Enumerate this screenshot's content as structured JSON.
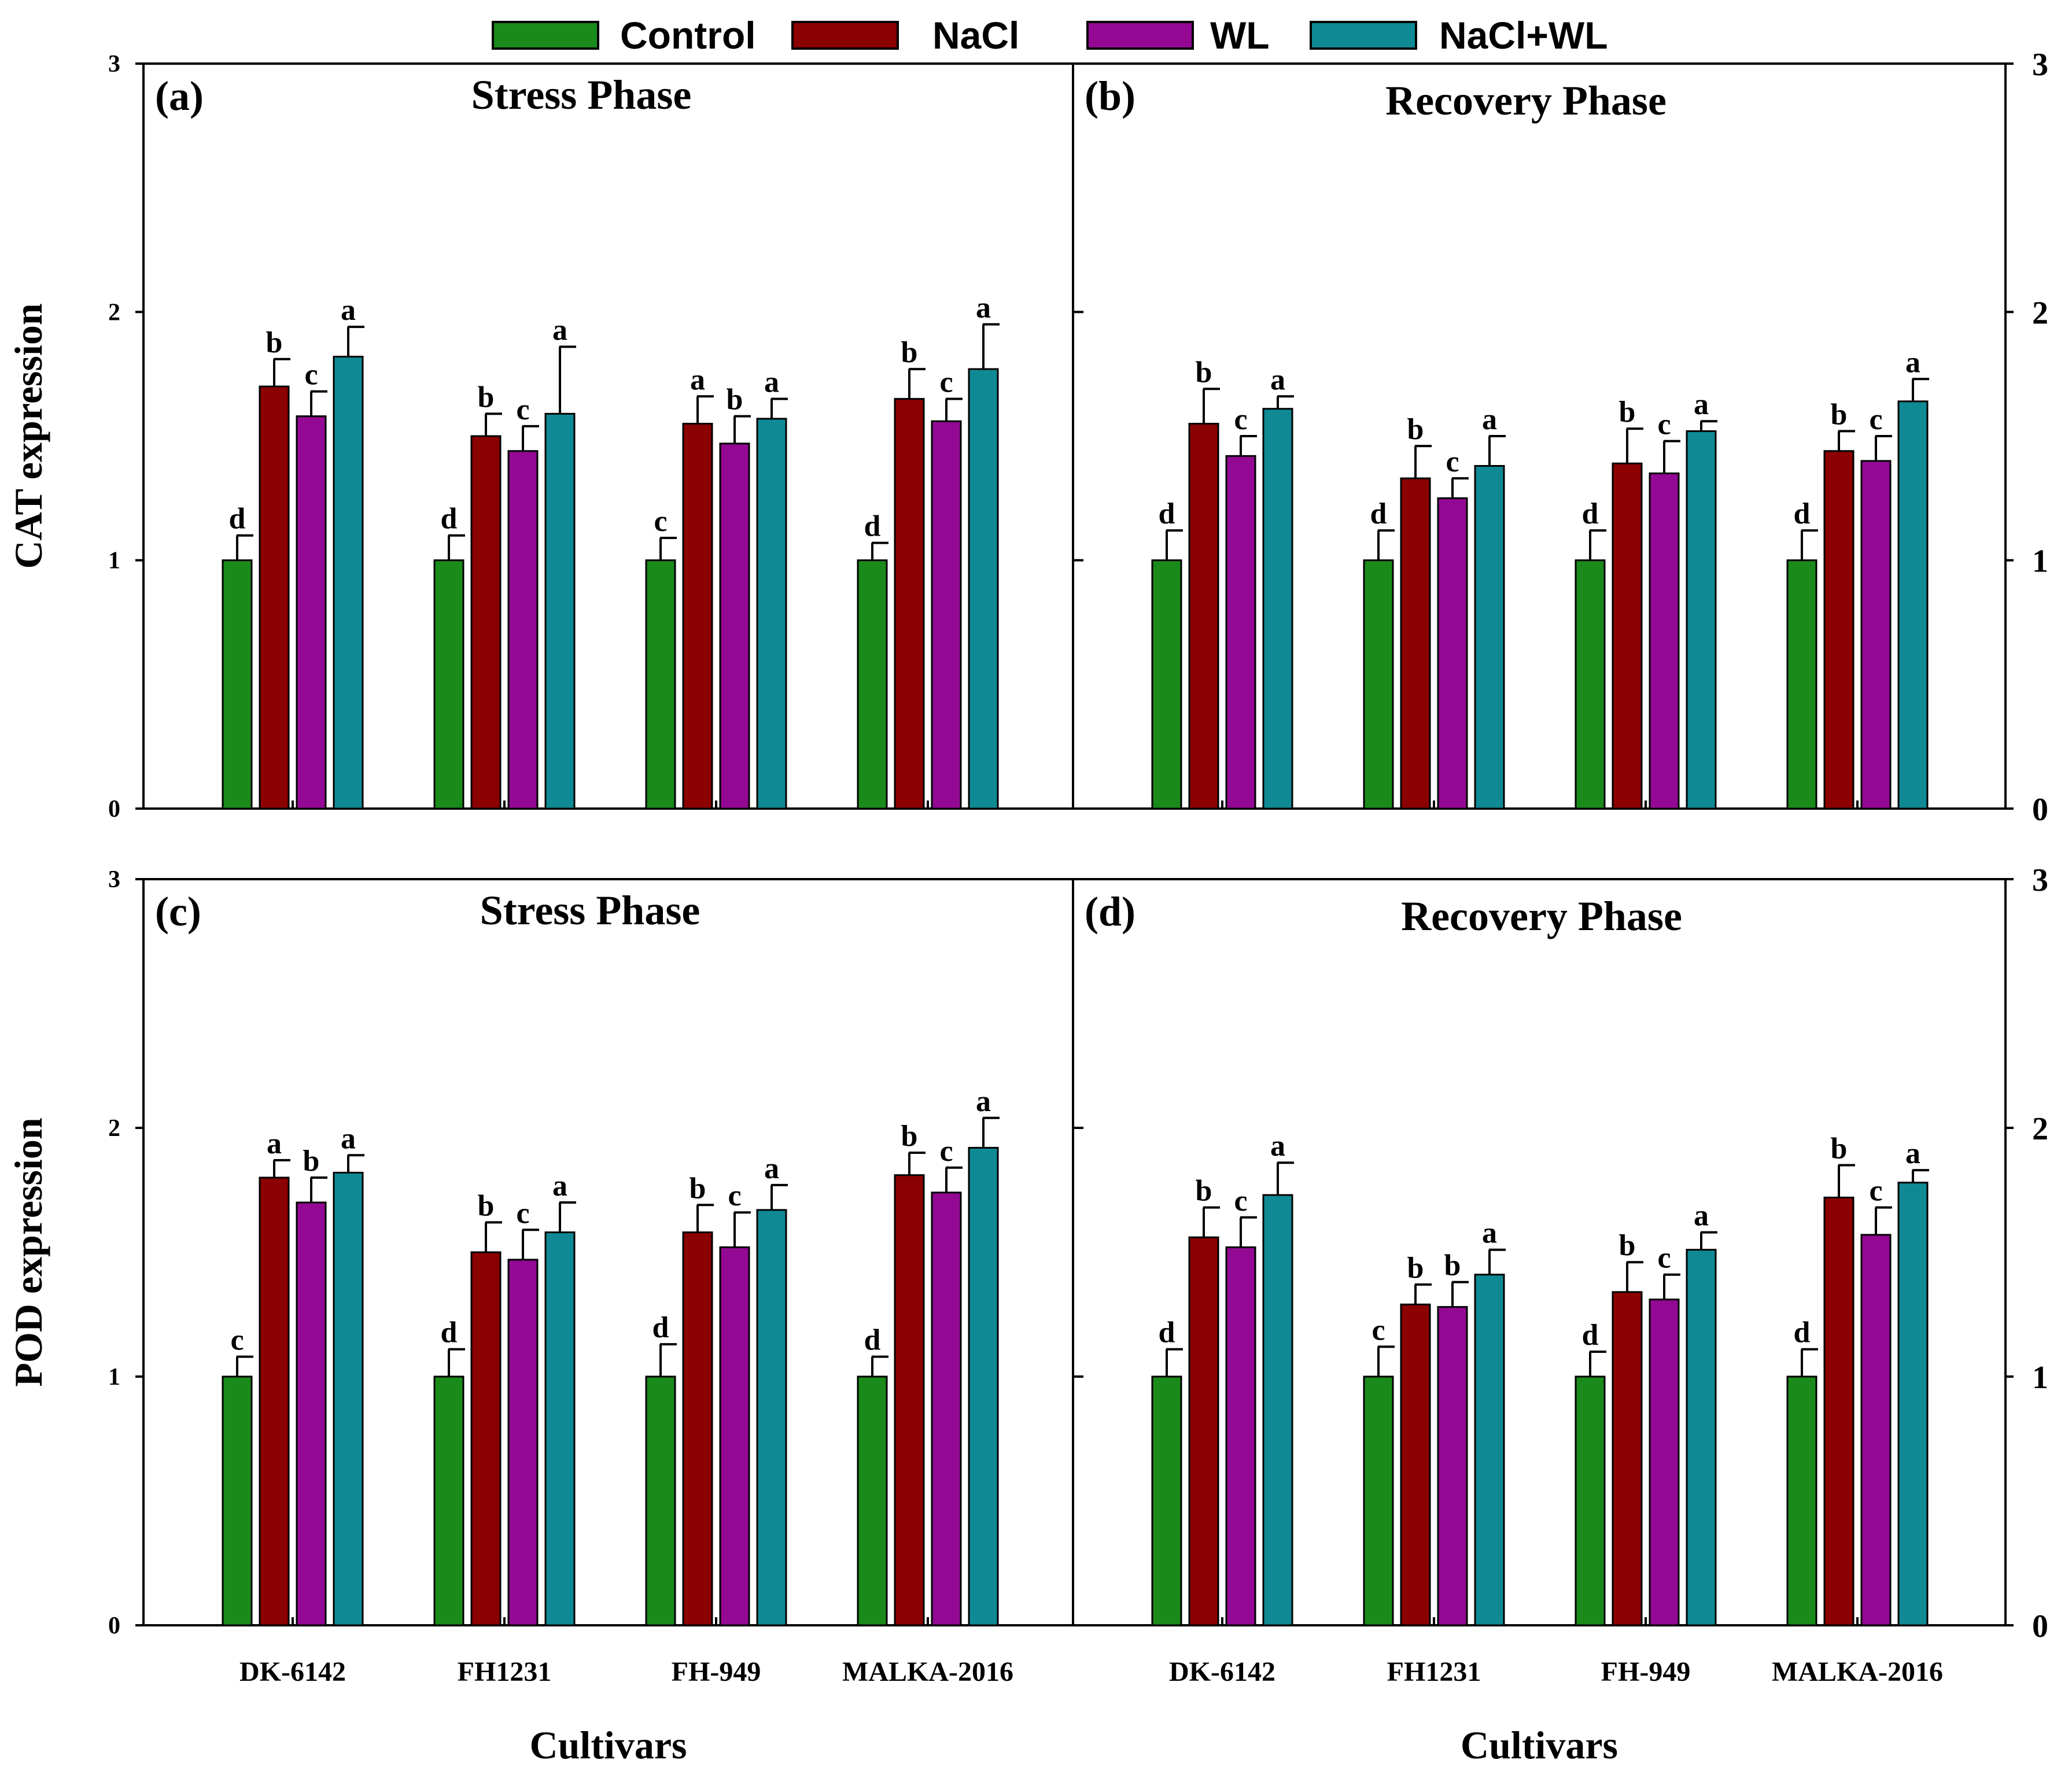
{
  "legend": {
    "placement": "top-center",
    "items": [
      {
        "name": "Control",
        "color": "#1a8a1a"
      },
      {
        "name": "NaCl",
        "color": "#8b0000"
      },
      {
        "name": "WL",
        "color": "#930993"
      },
      {
        "name": "NaCl+WL",
        "color": "#0f8a94"
      }
    ]
  },
  "chart_data": [
    {
      "type": "bar",
      "panel": "(a)",
      "title": "Stress Phase",
      "ylabel": "CAT expression",
      "xlabel": "",
      "ylim": [
        0,
        3
      ],
      "yticks": [
        0,
        1,
        2,
        3
      ],
      "categories": [
        "DK-6142",
        "FH1231",
        "FH-949",
        "MALKA-2016"
      ],
      "series": [
        {
          "name": "Control",
          "values": [
            1.0,
            1.0,
            1.0,
            1.0
          ],
          "errors": [
            0.1,
            0.1,
            0.09,
            0.07
          ],
          "letters": [
            "d",
            "d",
            "c",
            "d"
          ]
        },
        {
          "name": "NaCl",
          "values": [
            1.7,
            1.5,
            1.55,
            1.65
          ],
          "errors": [
            0.11,
            0.09,
            0.11,
            0.12
          ],
          "letters": [
            "b",
            "b",
            "a",
            "b"
          ]
        },
        {
          "name": "WL",
          "values": [
            1.58,
            1.44,
            1.47,
            1.56
          ],
          "errors": [
            0.1,
            0.1,
            0.11,
            0.09
          ],
          "letters": [
            "c",
            "c",
            "b",
            "c"
          ]
        },
        {
          "name": "NaCl+WL",
          "values": [
            1.82,
            1.59,
            1.57,
            1.77
          ],
          "errors": [
            0.12,
            0.27,
            0.08,
            0.18
          ],
          "letters": [
            "a",
            "a",
            "a",
            "a"
          ]
        }
      ]
    },
    {
      "type": "bar",
      "panel": "(b)",
      "title": "Recovery Phase",
      "ylabel": "",
      "xlabel": "",
      "ylim": [
        0,
        3
      ],
      "yticks": [
        0,
        1,
        2,
        3
      ],
      "categories": [
        "DK-6142",
        "FH1231",
        "FH-949",
        "MALKA-2016"
      ],
      "series": [
        {
          "name": "Control",
          "values": [
            1.0,
            1.0,
            1.0,
            1.0
          ],
          "errors": [
            0.12,
            0.12,
            0.12,
            0.12
          ],
          "letters": [
            "d",
            "d",
            "d",
            "d"
          ]
        },
        {
          "name": "NaCl",
          "values": [
            1.55,
            1.33,
            1.39,
            1.44
          ],
          "errors": [
            0.14,
            0.13,
            0.14,
            0.08
          ],
          "letters": [
            "b",
            "b",
            "b",
            "b"
          ]
        },
        {
          "name": "WL",
          "values": [
            1.42,
            1.25,
            1.35,
            1.4
          ],
          "errors": [
            0.08,
            0.08,
            0.13,
            0.1
          ],
          "letters": [
            "c",
            "c",
            "c",
            "c"
          ]
        },
        {
          "name": "NaCl+WL",
          "values": [
            1.61,
            1.38,
            1.52,
            1.64
          ],
          "errors": [
            0.05,
            0.12,
            0.04,
            0.09
          ],
          "letters": [
            "a",
            "a",
            "a",
            "a"
          ]
        }
      ]
    },
    {
      "type": "bar",
      "panel": "(c)",
      "title": "Stress Phase",
      "ylabel": "POD expression",
      "xlabel": "Cultivars",
      "ylim": [
        0,
        3
      ],
      "yticks": [
        0,
        1,
        2,
        3
      ],
      "categories": [
        "DK-6142",
        "FH1231",
        "FH-949",
        "MALKA-2016"
      ],
      "series": [
        {
          "name": "Control",
          "values": [
            1.0,
            1.0,
            1.0,
            1.0
          ],
          "errors": [
            0.08,
            0.11,
            0.13,
            0.08
          ],
          "letters": [
            "c",
            "d",
            "d",
            "d"
          ]
        },
        {
          "name": "NaCl",
          "values": [
            1.8,
            1.5,
            1.58,
            1.81
          ],
          "errors": [
            0.07,
            0.12,
            0.11,
            0.09
          ],
          "letters": [
            "a",
            "b",
            "b",
            "b"
          ]
        },
        {
          "name": "WL",
          "values": [
            1.7,
            1.47,
            1.52,
            1.74
          ],
          "errors": [
            0.1,
            0.12,
            0.14,
            0.1
          ],
          "letters": [
            "b",
            "c",
            "c",
            "c"
          ]
        },
        {
          "name": "NaCl+WL",
          "values": [
            1.82,
            1.58,
            1.67,
            1.92
          ],
          "errors": [
            0.07,
            0.12,
            0.1,
            0.12
          ],
          "letters": [
            "a",
            "a",
            "a",
            "a"
          ]
        }
      ]
    },
    {
      "type": "bar",
      "panel": "(d)",
      "title": "Recovery Phase",
      "ylabel": "",
      "xlabel": "Cultivars",
      "ylim": [
        0,
        3
      ],
      "yticks": [
        0,
        1,
        2,
        3
      ],
      "categories": [
        "DK-6142",
        "FH1231",
        "FH-949",
        "MALKA-2016"
      ],
      "series": [
        {
          "name": "Control",
          "values": [
            1.0,
            1.0,
            1.0,
            1.0
          ],
          "errors": [
            0.11,
            0.12,
            0.1,
            0.11
          ],
          "letters": [
            "d",
            "c",
            "d",
            "d"
          ]
        },
        {
          "name": "NaCl",
          "values": [
            1.56,
            1.29,
            1.34,
            1.72
          ],
          "errors": [
            0.12,
            0.08,
            0.12,
            0.13
          ],
          "letters": [
            "b",
            "b",
            "b",
            "b"
          ]
        },
        {
          "name": "WL",
          "values": [
            1.52,
            1.28,
            1.31,
            1.57
          ],
          "errors": [
            0.12,
            0.1,
            0.1,
            0.11
          ],
          "letters": [
            "c",
            "b",
            "c",
            "c"
          ]
        },
        {
          "name": "NaCl+WL",
          "values": [
            1.73,
            1.41,
            1.51,
            1.78
          ],
          "errors": [
            0.13,
            0.1,
            0.07,
            0.05
          ],
          "letters": [
            "a",
            "a",
            "a",
            "a"
          ]
        }
      ]
    }
  ]
}
